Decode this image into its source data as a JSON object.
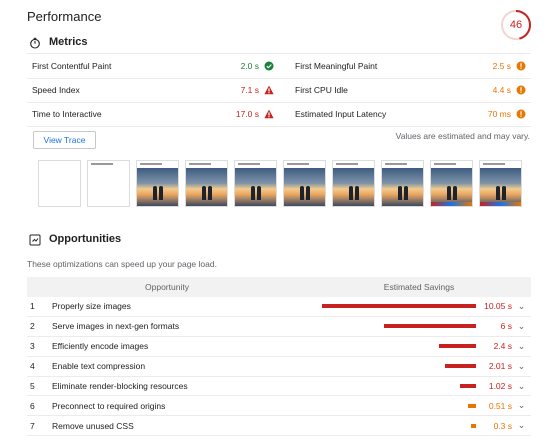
{
  "header": {
    "title": "Performance",
    "score": "46",
    "score_fraction": 0.46,
    "score_color": "#c7221f"
  },
  "metrics_section": {
    "title": "Metrics",
    "icon": "stopwatch-icon"
  },
  "metrics": [
    {
      "name": "First Contentful Paint",
      "value": "2.0 s",
      "status": "pass"
    },
    {
      "name": "First Meaningful Paint",
      "value": "2.5 s",
      "status": "average"
    },
    {
      "name": "Speed Index",
      "value": "7.1 s",
      "status": "fail"
    },
    {
      "name": "First CPU Idle",
      "value": "4.4 s",
      "status": "average"
    },
    {
      "name": "Time to Interactive",
      "value": "17.0 s",
      "status": "fail"
    },
    {
      "name": "Estimated Input Latency",
      "value": "70 ms",
      "status": "average"
    }
  ],
  "view_trace_label": "View Trace",
  "estimate_note": "Values are estimated and may vary.",
  "filmstrip": {
    "frame_count": 10,
    "frames": [
      "blank",
      "header-only",
      "image",
      "image",
      "image",
      "image",
      "image",
      "image",
      "image-colorbar",
      "image-colorbar"
    ]
  },
  "opportunities_section": {
    "title": "Opportunities",
    "icon": "opportunities-icon"
  },
  "opportunities_subtitle": "These optimizations can speed up your page load.",
  "opp_table": {
    "header_opportunity": "Opportunity",
    "header_savings": "Estimated Savings",
    "max_savings_s": 10.05,
    "rows": [
      {
        "index": "1",
        "name": "Properly size images",
        "savings": "10.05 s",
        "savings_s": 10.05,
        "level": "fail"
      },
      {
        "index": "2",
        "name": "Serve images in next-gen formats",
        "savings": "6 s",
        "savings_s": 6,
        "level": "fail"
      },
      {
        "index": "3",
        "name": "Efficiently encode images",
        "savings": "2.4 s",
        "savings_s": 2.4,
        "level": "fail"
      },
      {
        "index": "4",
        "name": "Enable text compression",
        "savings": "2.01 s",
        "savings_s": 2.01,
        "level": "fail"
      },
      {
        "index": "5",
        "name": "Eliminate render-blocking resources",
        "savings": "1.02 s",
        "savings_s": 1.02,
        "level": "fail"
      },
      {
        "index": "6",
        "name": "Preconnect to required origins",
        "savings": "0.51 s",
        "savings_s": 0.51,
        "level": "average"
      },
      {
        "index": "7",
        "name": "Remove unused CSS",
        "savings": "0.3 s",
        "savings_s": 0.3,
        "level": "average"
      }
    ]
  },
  "colors": {
    "pass": "#178239",
    "fail": "#c7221f",
    "average": "#e67700",
    "link": "#1a73e8"
  }
}
